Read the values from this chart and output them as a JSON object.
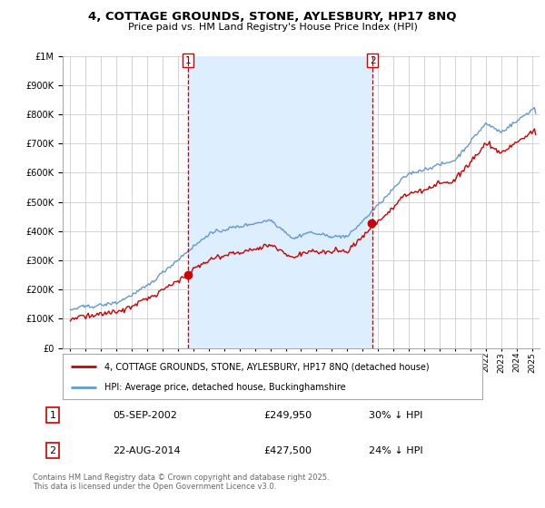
{
  "title": "4, COTTAGE GROUNDS, STONE, AYLESBURY, HP17 8NQ",
  "subtitle": "Price paid vs. HM Land Registry's House Price Index (HPI)",
  "legend_line1": "4, COTTAGE GROUNDS, STONE, AYLESBURY, HP17 8NQ (detached house)",
  "legend_line2": "HPI: Average price, detached house, Buckinghamshire",
  "sale1_label": "1",
  "sale1_date": "05-SEP-2002",
  "sale1_price": "£249,950",
  "sale1_hpi": "30% ↓ HPI",
  "sale2_label": "2",
  "sale2_date": "22-AUG-2014",
  "sale2_price": "£427,500",
  "sale2_hpi": "24% ↓ HPI",
  "footer": "Contains HM Land Registry data © Crown copyright and database right 2025.\nThis data is licensed under the Open Government Licence v3.0.",
  "property_color": "#cc0000",
  "hpi_color": "#6699cc",
  "hpi_fill_color": "#ddeeff",
  "vline_color": "#cc0000",
  "sale1_year": 2002.67,
  "sale2_year": 2014.64,
  "ylim_max": 1000000,
  "ylim_min": 0,
  "xlim_min": 1994.5,
  "xlim_max": 2025.5,
  "background_color": "#ffffff",
  "grid_color": "#cccccc"
}
